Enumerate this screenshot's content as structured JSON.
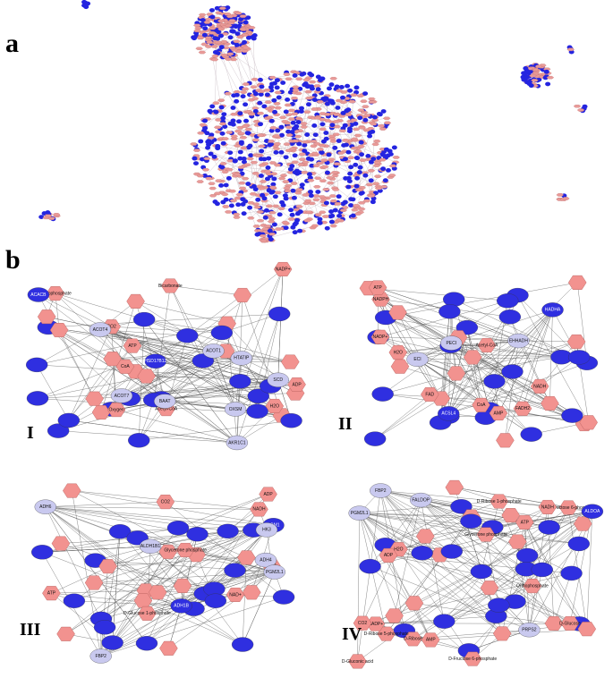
{
  "figure": {
    "label_a": "a",
    "label_b": "b"
  },
  "subnetworks": [
    {
      "label": "I",
      "nodes": [
        {
          "label": "AKR1C1",
          "shape": "ellipse",
          "color": "#c9c9ef"
        },
        {
          "label": "HTATIP",
          "shape": "ellipse",
          "color": "#c9c9ef"
        },
        {
          "label": "SCD",
          "shape": "ellipse",
          "color": "#c9c9ef"
        },
        {
          "label": "ACOT1",
          "shape": "ellipse",
          "color": "#c9c9ef"
        },
        {
          "label": "ACOT4",
          "shape": "ellipse",
          "color": "#c9c9ef"
        },
        {
          "label": "BAAT",
          "shape": "ellipse",
          "color": "#c9c9ef"
        },
        {
          "label": "ACOT7",
          "shape": "ellipse",
          "color": "#c9c9ef"
        },
        {
          "label": "OXSM",
          "shape": "ellipse",
          "color": "#c9c9ef"
        },
        {
          "label": "ACACB",
          "shape": "ellipse",
          "color": "#2f2fe0"
        },
        {
          "label": "HSD17B12",
          "shape": "ellipse",
          "color": "#2f2fe0"
        },
        {
          "label": "H2O",
          "shape": "hexagon",
          "color": "#f2928f"
        },
        {
          "label": "CoA",
          "shape": "hexagon",
          "color": "#f2928f"
        },
        {
          "label": "ATP",
          "shape": "hexagon",
          "color": "#f2928f"
        },
        {
          "label": "ADP",
          "shape": "hexagon",
          "color": "#f2928f"
        },
        {
          "label": "CO2",
          "shape": "hexagon",
          "color": "#f2928f"
        },
        {
          "label": "Orthophosphate",
          "shape": "hexagon",
          "color": "#f2928f"
        },
        {
          "label": "Acetyl-CoA",
          "shape": "hexagon",
          "color": "#f2928f"
        },
        {
          "label": "Oxygen",
          "shape": "hexagon",
          "color": "#f2928f"
        },
        {
          "label": "NADP+",
          "shape": "hexagon",
          "color": "#f2928f"
        },
        {
          "label": "Bicarbonate",
          "shape": "hexagon",
          "color": "#f2928f"
        }
      ]
    },
    {
      "label": "II",
      "nodes": [
        {
          "label": "PECI",
          "shape": "ellipse",
          "color": "#c9c9ef"
        },
        {
          "label": "ECI",
          "shape": "ellipse",
          "color": "#c9c9ef"
        },
        {
          "label": "EHHADH",
          "shape": "ellipse",
          "color": "#c9c9ef"
        },
        {
          "label": "ACSL4",
          "shape": "ellipse",
          "color": "#2f2fe0"
        },
        {
          "label": "HADHA",
          "shape": "ellipse",
          "color": "#2f2fe0"
        },
        {
          "label": "ACADS",
          "shape": "ellipse",
          "color": "#2f2fe0"
        },
        {
          "label": "AMP",
          "shape": "hexagon",
          "color": "#f2928f"
        },
        {
          "label": "ATP",
          "shape": "hexagon",
          "color": "#f2928f"
        },
        {
          "label": "CoA",
          "shape": "hexagon",
          "color": "#f2928f"
        },
        {
          "label": "Acetyl-CoA",
          "shape": "hexagon",
          "color": "#f2928f"
        },
        {
          "label": "FAD",
          "shape": "hexagon",
          "color": "#f2928f"
        },
        {
          "label": "FADH2",
          "shape": "hexagon",
          "color": "#f2928f"
        },
        {
          "label": "NADH",
          "shape": "hexagon",
          "color": "#f2928f"
        },
        {
          "label": "H2O",
          "shape": "hexagon",
          "color": "#f2928f"
        },
        {
          "label": "NADPH",
          "shape": "hexagon",
          "color": "#f2928f"
        },
        {
          "label": "NADP+",
          "shape": "hexagon",
          "color": "#f2928f"
        }
      ]
    },
    {
      "label": "III",
      "nodes": [
        {
          "label": "FBP2",
          "shape": "ellipse",
          "color": "#c9c9ef"
        },
        {
          "label": "HK3",
          "shape": "ellipse",
          "color": "#c9c9ef"
        },
        {
          "label": "PGM2L1",
          "shape": "ellipse",
          "color": "#c9c9ef"
        },
        {
          "label": "ALDH1B1",
          "shape": "ellipse",
          "color": "#c9c9ef"
        },
        {
          "label": "ADH6",
          "shape": "ellipse",
          "color": "#c9c9ef"
        },
        {
          "label": "ADH1B",
          "shape": "ellipse",
          "color": "#2f2fe0"
        },
        {
          "label": "ADH4",
          "shape": "ellipse",
          "color": "#c9c9ef"
        },
        {
          "label": "PGM1",
          "shape": "ellipse",
          "color": "#2f2fe0"
        },
        {
          "label": "ATP",
          "shape": "hexagon",
          "color": "#f2928f"
        },
        {
          "label": "ADP",
          "shape": "hexagon",
          "color": "#f2928f"
        },
        {
          "label": "CO2",
          "shape": "hexagon",
          "color": "#f2928f"
        },
        {
          "label": "NADH",
          "shape": "hexagon",
          "color": "#f2928f"
        },
        {
          "label": "NAD+",
          "shape": "hexagon",
          "color": "#f2928f"
        },
        {
          "label": "H2O",
          "shape": "hexagon",
          "color": "#f2928f"
        },
        {
          "label": "Glycerone phosphate",
          "shape": "hexagon",
          "color": "#f2928f"
        },
        {
          "label": "D-Glucose 1-phosphate",
          "shape": "hexagon",
          "color": "#f2928f"
        }
      ]
    },
    {
      "label": "IV",
      "nodes": [
        {
          "label": "FALDOP",
          "shape": "ellipse",
          "color": "#c9c9ef"
        },
        {
          "label": "FBP2",
          "shape": "ellipse",
          "color": "#c9c9ef"
        },
        {
          "label": "PGM2L1",
          "shape": "ellipse",
          "color": "#c9c9ef"
        },
        {
          "label": "PRPS2",
          "shape": "ellipse",
          "color": "#c9c9ef"
        },
        {
          "label": "ALDOA",
          "shape": "ellipse",
          "color": "#2f2fe0"
        },
        {
          "label": "ATP",
          "shape": "hexagon",
          "color": "#f2928f"
        },
        {
          "label": "ADP",
          "shape": "hexagon",
          "color": "#f2928f"
        },
        {
          "label": "AMP",
          "shape": "hexagon",
          "color": "#f2928f"
        },
        {
          "label": "CO2",
          "shape": "hexagon",
          "color": "#f2928f"
        },
        {
          "label": "H2O",
          "shape": "hexagon",
          "color": "#f2928f"
        },
        {
          "label": "NADH",
          "shape": "hexagon",
          "color": "#f2928f"
        },
        {
          "label": "NADP+",
          "shape": "hexagon",
          "color": "#f2928f"
        },
        {
          "label": "D-Fructose 6-phosphate",
          "shape": "hexagon",
          "color": "#f2928f"
        },
        {
          "label": "Glycerone phosphate",
          "shape": "hexagon",
          "color": "#f2928f"
        },
        {
          "label": "Orthophosphate",
          "shape": "hexagon",
          "color": "#f2928f"
        },
        {
          "label": "D-Ribose 1-phosphate",
          "shape": "hexagon",
          "color": "#f2928f"
        },
        {
          "label": "D-Ribose 5-phosphate",
          "shape": "hexagon",
          "color": "#f2928f"
        },
        {
          "label": "D-Gluconic acid",
          "shape": "hexagon",
          "color": "#f2928f"
        },
        {
          "label": "D-Glucose",
          "shape": "hexagon",
          "color": "#f2928f"
        },
        {
          "label": "D-Ribose",
          "shape": "hexagon",
          "color": "#f2928f"
        },
        {
          "label": "Aminofructose 6-phosphate",
          "shape": "hexagon",
          "color": "#f2928f"
        }
      ]
    }
  ]
}
